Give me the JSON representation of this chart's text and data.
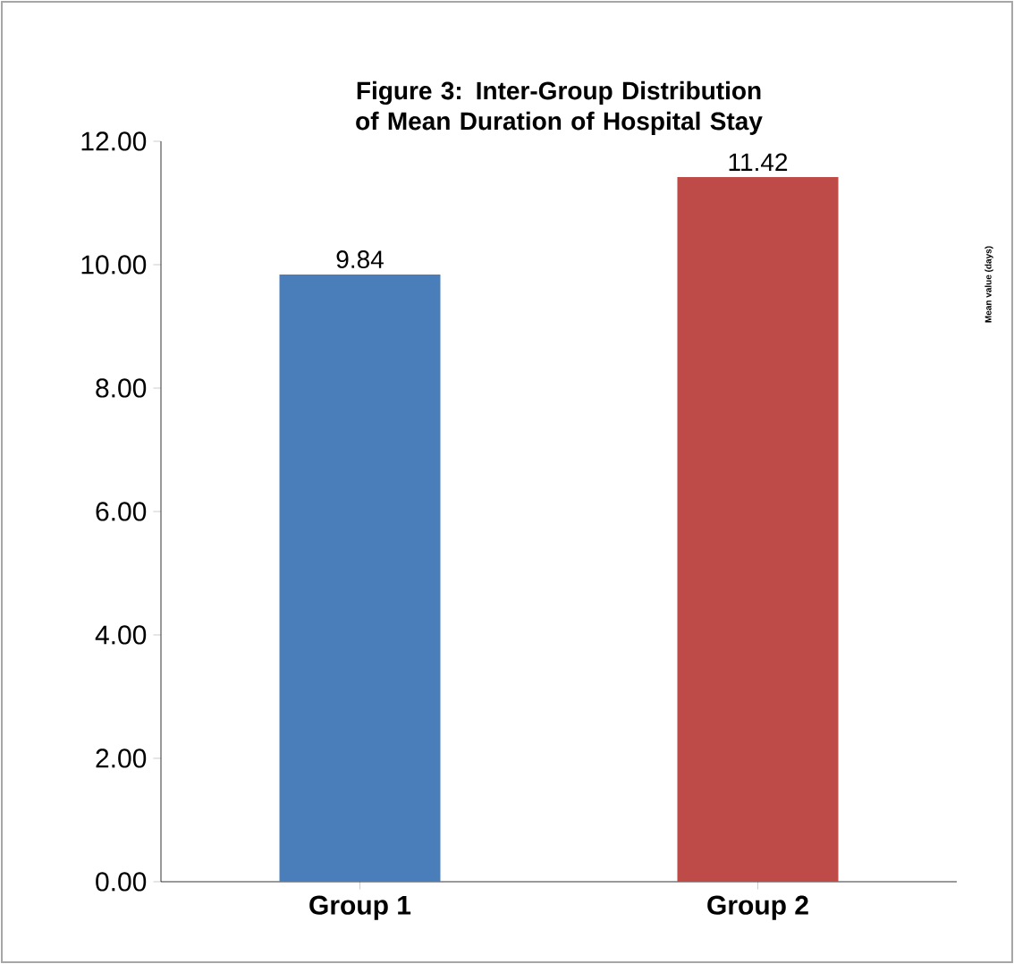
{
  "chart_data": {
    "type": "bar",
    "title": "Figure 3: Inter-Group Distribution of Mean Duration of Hospital Stay",
    "ylabel": "Mean value (days)",
    "categories": [
      "Group 1",
      "Group 2"
    ],
    "values": [
      9.84,
      11.42
    ],
    "colors": [
      "#4a7ebb",
      "#be4b48"
    ],
    "ylim": [
      0,
      12
    ],
    "yticks": [
      {
        "value": 0,
        "label": "0.00"
      },
      {
        "value": 2,
        "label": "2.00"
      },
      {
        "value": 4,
        "label": "4.00"
      },
      {
        "value": 6,
        "label": "6.00"
      },
      {
        "value": 8,
        "label": "8.00"
      },
      {
        "value": 10,
        "label": "10.00"
      },
      {
        "value": 12,
        "label": "12.00"
      }
    ],
    "data_labels": true
  }
}
